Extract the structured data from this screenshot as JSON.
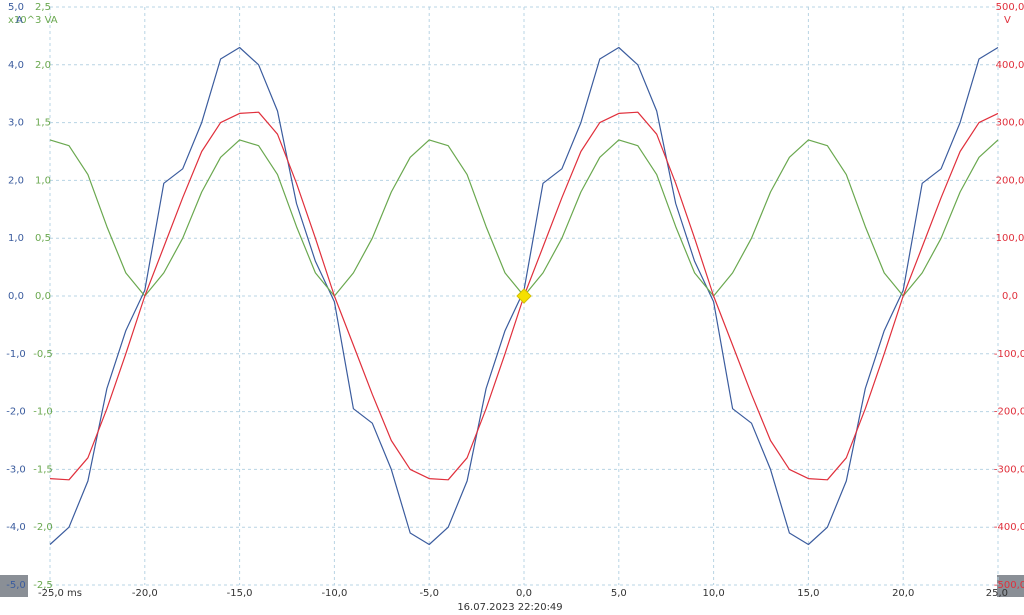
{
  "chart_data": {
    "type": "line",
    "x_unit_label": "ms",
    "y_label": "A",
    "y2_label": "x10^3 VA",
    "y3_label": "V",
    "footer": "16.07.2023 22:20:49",
    "grid": true,
    "x": [
      -25,
      -24,
      -23,
      -22,
      -21,
      -20,
      -19,
      -18,
      -17,
      -16,
      -15,
      -14,
      -13,
      -12,
      -11,
      -10,
      -9,
      -8,
      -7,
      -6,
      -5,
      -4,
      -3,
      -2,
      -1,
      0,
      1,
      2,
      3,
      4,
      5,
      6,
      7,
      8,
      9,
      10,
      11,
      12,
      13,
      14,
      15,
      16,
      17,
      18,
      19,
      20,
      21,
      22,
      23,
      24,
      25
    ],
    "xlim": [
      -25,
      25
    ],
    "xticks": [
      {
        "value": -25,
        "label": "-25,0 ms"
      },
      {
        "value": -20,
        "label": "-20,0"
      },
      {
        "value": -15,
        "label": "-15,0"
      },
      {
        "value": -10,
        "label": "-10,0"
      },
      {
        "value": -5,
        "label": "-5,0"
      },
      {
        "value": 0,
        "label": "0,0"
      },
      {
        "value": 5,
        "label": "5,0"
      },
      {
        "value": 10,
        "label": "10,0"
      },
      {
        "value": 15,
        "label": "15,0"
      },
      {
        "value": 20,
        "label": "20,0"
      },
      {
        "value": 25,
        "label": "25,0"
      }
    ],
    "ylim": [
      -5,
      5
    ],
    "yticks": [
      {
        "value": 5,
        "label": "5,0"
      },
      {
        "value": 4,
        "label": "4,0"
      },
      {
        "value": 3,
        "label": "3,0"
      },
      {
        "value": 2,
        "label": "2,0"
      },
      {
        "value": 1,
        "label": "1,0"
      },
      {
        "value": 0,
        "label": "0,0"
      },
      {
        "value": -1,
        "label": "-1,0"
      },
      {
        "value": -2,
        "label": "-2,0"
      },
      {
        "value": -3,
        "label": "-3,0"
      },
      {
        "value": -4,
        "label": "-4,0"
      },
      {
        "value": -5,
        "label": "-5,0"
      }
    ],
    "y2lim": [
      -2.5,
      2.5
    ],
    "y2ticks": [
      {
        "value": 2.5,
        "label": "2,5"
      },
      {
        "value": 2,
        "label": "2,0"
      },
      {
        "value": 1.5,
        "label": "1,5"
      },
      {
        "value": 1,
        "label": "1,0"
      },
      {
        "value": 0.5,
        "label": "0,5"
      },
      {
        "value": 0,
        "label": "0,0"
      },
      {
        "value": -0.5,
        "label": "-0,5"
      },
      {
        "value": -1,
        "label": "-1,0"
      },
      {
        "value": -1.5,
        "label": "-1,5"
      },
      {
        "value": -2,
        "label": "-2,0"
      },
      {
        "value": -2.5,
        "label": "-2,5"
      }
    ],
    "y3lim": [
      -500,
      500
    ],
    "y3ticks": [
      {
        "value": 500,
        "label": "500,0"
      },
      {
        "value": 400,
        "label": "400,0"
      },
      {
        "value": 300,
        "label": "300,0"
      },
      {
        "value": 200,
        "label": "200,0"
      },
      {
        "value": 100,
        "label": "100,0"
      },
      {
        "value": 0,
        "label": "0,0"
      },
      {
        "value": -100,
        "label": "-100,0"
      },
      {
        "value": -200,
        "label": "-200,0"
      },
      {
        "value": -300,
        "label": "-300,0"
      },
      {
        "value": -400,
        "label": "-400,0"
      },
      {
        "value": -500,
        "label": "-500,0"
      }
    ],
    "series": [
      {
        "axis": "y",
        "color": "#3b5c9e",
        "values": [
          -4.3,
          -4.0,
          -3.2,
          -1.6,
          -0.6,
          0.1,
          1.95,
          2.2,
          3.0,
          4.1,
          4.3,
          4.0,
          3.2,
          1.6,
          0.6,
          -0.1,
          -1.95,
          -2.2,
          -3.0,
          -4.1,
          -4.3,
          -4.0,
          -3.2,
          -1.6,
          -0.6,
          0.1,
          1.95,
          2.2,
          3.0,
          4.1,
          4.3,
          4.0,
          3.2,
          1.6,
          0.6,
          -0.1,
          -1.95,
          -2.2,
          -3.0,
          -4.1,
          -4.3,
          -4.0,
          -3.2,
          -1.6,
          -0.6,
          0.1,
          1.95,
          2.2,
          3.0,
          4.1,
          4.3
        ]
      },
      {
        "axis": "y2",
        "color": "#6aa84f",
        "values": [
          1.35,
          1.3,
          1.05,
          0.6,
          0.2,
          0,
          0.2,
          0.5,
          0.9,
          1.2,
          1.35,
          1.3,
          1.05,
          0.6,
          0.2,
          0,
          0.2,
          0.5,
          0.9,
          1.2,
          1.35,
          1.3,
          1.05,
          0.6,
          0.2,
          0,
          0.2,
          0.5,
          0.9,
          1.2,
          1.35,
          1.3,
          1.05,
          0.6,
          0.2,
          0,
          0.2,
          0.5,
          0.9,
          1.2,
          1.35,
          1.3,
          1.05,
          0.6,
          0.2,
          0,
          0.2,
          0.5,
          0.9,
          1.2,
          1.35
        ]
      },
      {
        "axis": "y3",
        "color": "#e0303c",
        "values": [
          -316,
          -318,
          -280,
          -195,
          -100,
          0,
          85,
          170,
          250,
          300,
          316,
          318,
          280,
          195,
          100,
          0,
          -85,
          -170,
          -250,
          -300,
          -316,
          -318,
          -280,
          -195,
          -100,
          0,
          85,
          170,
          250,
          300,
          316,
          318,
          280,
          195,
          100,
          0,
          -85,
          -170,
          -250,
          -300,
          -316,
          -318,
          -280,
          -195,
          -100,
          0,
          85,
          170,
          250,
          300,
          316
        ]
      }
    ]
  }
}
